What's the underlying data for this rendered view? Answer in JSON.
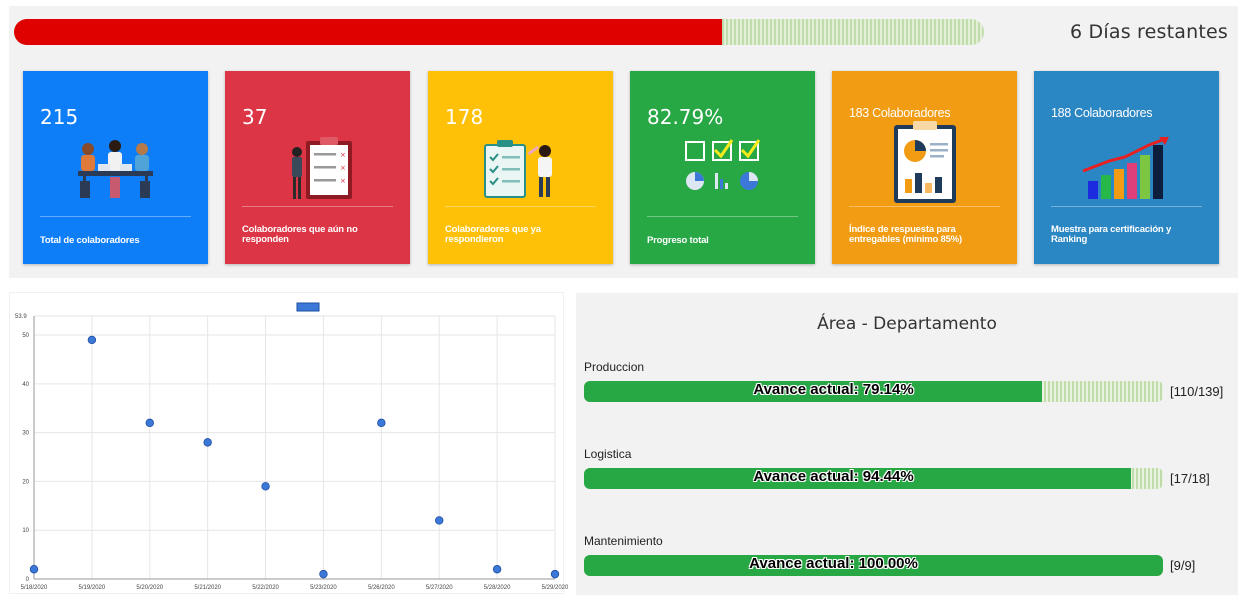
{
  "header": {
    "progress": 0.73,
    "bar_color": "#df0000",
    "days_left": "6 Días restantes"
  },
  "cards": [
    {
      "value": "215",
      "caption": "Total de colaboradores",
      "color": "#0d7ef7",
      "icon": "people-meeting-icon"
    },
    {
      "value": "37",
      "caption": "Colaboradores que aún no responden",
      "color": "#dc3545",
      "icon": "clipboard-x-icon"
    },
    {
      "value": "178",
      "caption": "Colaboradores que ya respondieron",
      "color": "#ffc107",
      "icon": "checklist-icon"
    },
    {
      "value": "82.79%",
      "caption": "Progreso total",
      "color": "#28a745",
      "icon": "checkboxes-charts-icon"
    },
    {
      "value": "183 Colaboradores",
      "caption": "Índice de respuesta para entregables (mínimo 85%)",
      "color": "#f29c13",
      "icon": "report-board-icon"
    },
    {
      "value": "188 Colaboradores",
      "caption": "Muestra para certificación y Ranking",
      "color": "#2b86c4",
      "icon": "growth-bars-icon"
    }
  ],
  "chart_data": {
    "type": "scatter",
    "x": [
      "5/18/2020",
      "5/19/2020",
      "5/20/2020",
      "5/21/2020",
      "5/22/2020",
      "5/23/2020",
      "5/26/2020",
      "5/27/2020",
      "5/28/2020",
      "5/29/2020"
    ],
    "values": [
      2,
      49,
      32,
      28,
      19,
      1,
      32,
      12,
      2,
      1
    ],
    "ylim": [
      0,
      53.9
    ],
    "yticks": [
      0,
      10,
      20,
      30,
      40,
      50
    ],
    "ymax_label": "53.9",
    "grid": true,
    "point_color": "#3b78d8",
    "legend_color": "#3b78d8"
  },
  "departments": {
    "title": "Área - Departamento",
    "rows": [
      {
        "name": "Produccion",
        "progress": 0.7914,
        "label": "Avance actual: 79.14%",
        "count": "[110/139]"
      },
      {
        "name": "Logistica",
        "progress": 0.9444,
        "label": "Avance actual: 94.44%",
        "count": "[17/18]"
      },
      {
        "name": "Mantenimiento",
        "progress": 1.0,
        "label": "Avance actual: 100.00%",
        "count": "[9/9]"
      }
    ]
  }
}
